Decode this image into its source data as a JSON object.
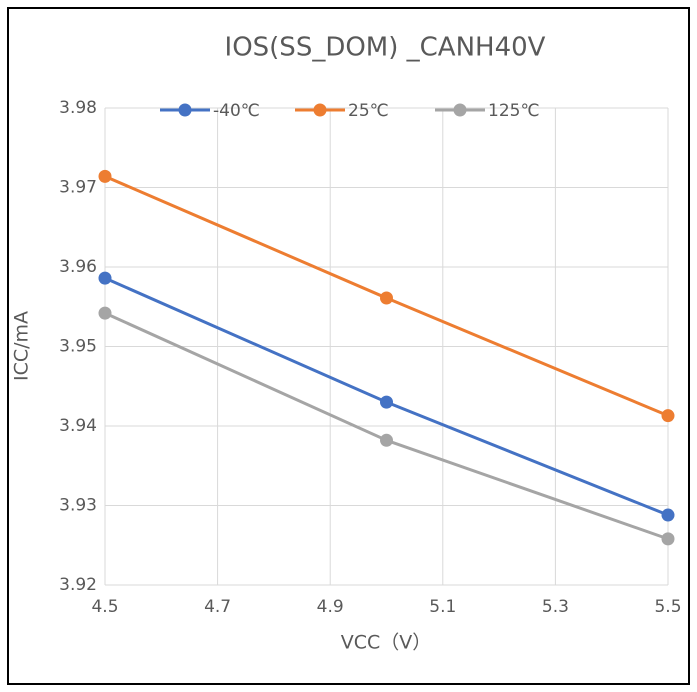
{
  "chart_data": {
    "type": "line",
    "title": "IOS(SS_DOM) _CANH40V",
    "x_label": "VCC（V）",
    "y_label": "ICC/mA",
    "x": [
      4.5,
      5.0,
      5.5
    ],
    "series": [
      {
        "name": "-40℃",
        "color": "#4472c4",
        "values": [
          3.9586,
          3.943,
          3.9288
        ]
      },
      {
        "name": "25℃",
        "color": "#ed7d31",
        "values": [
          3.9714,
          3.9561,
          3.9413
        ]
      },
      {
        "name": "125℃",
        "color": "#a5a5a5",
        "values": [
          3.9542,
          3.9382,
          3.9258
        ]
      }
    ],
    "xlim": [
      4.5,
      5.5
    ],
    "xticks": [
      4.5,
      4.7,
      4.9,
      5.1,
      5.3,
      5.5
    ],
    "ylim": [
      3.92,
      3.98
    ],
    "yticks": [
      3.92,
      3.93,
      3.94,
      3.95,
      3.96,
      3.97,
      3.98
    ],
    "grid": true,
    "legend": "top",
    "markers": true
  }
}
